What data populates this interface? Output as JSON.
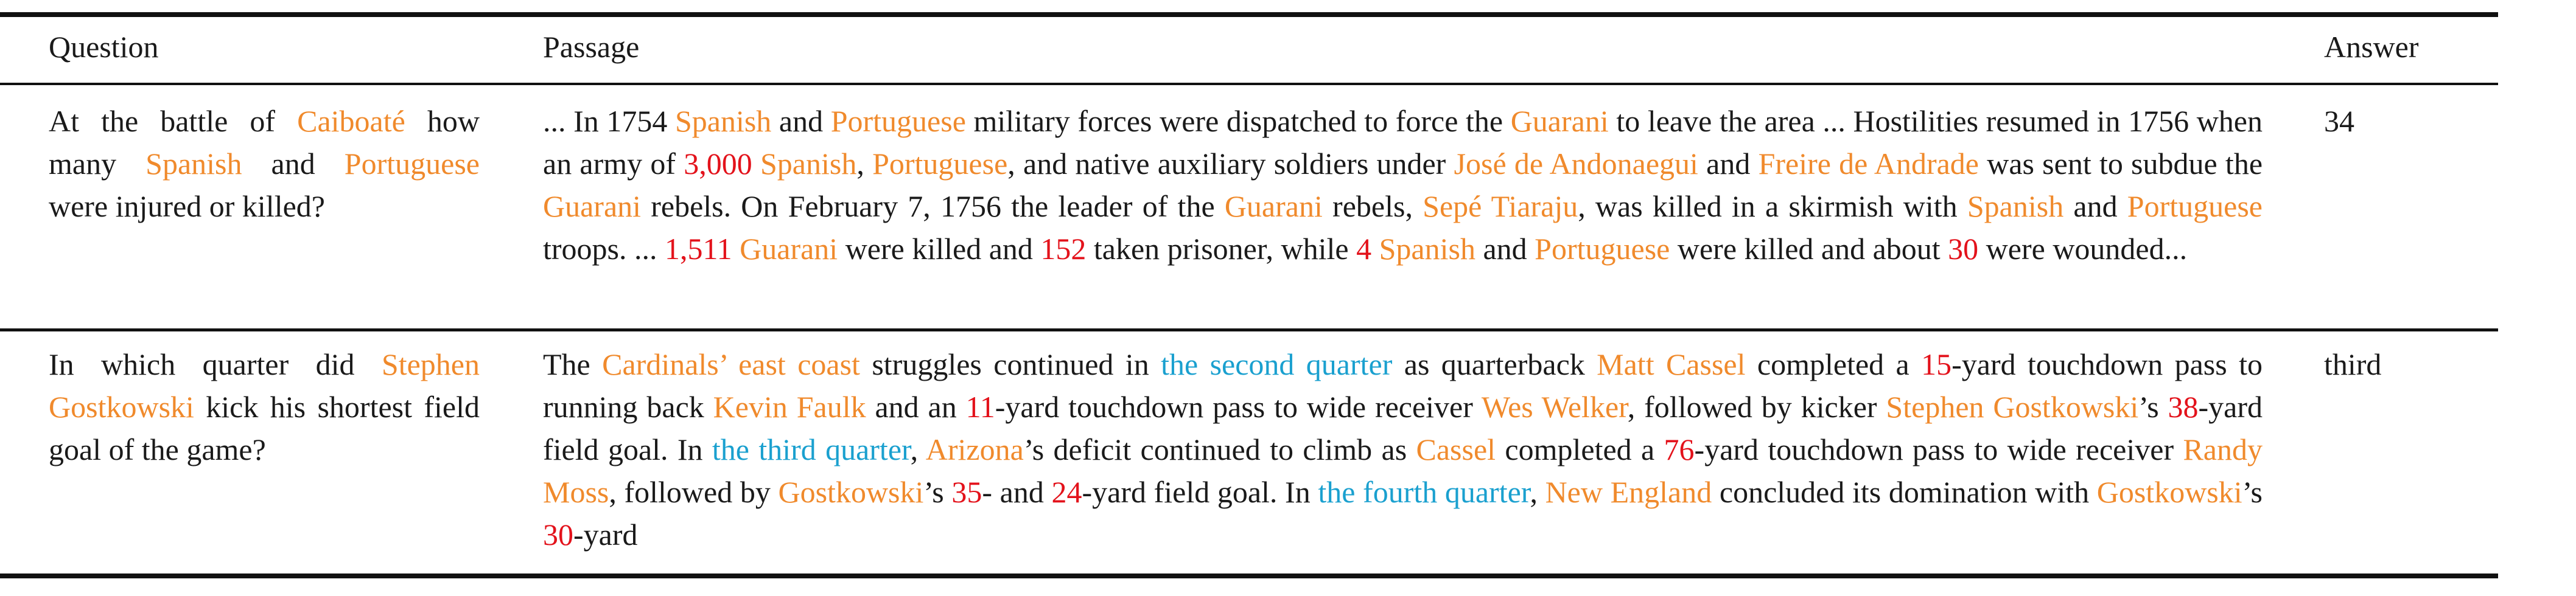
{
  "headers": {
    "question": "Question",
    "passage": "Passage",
    "answer": "Answer"
  },
  "highlight_colors": {
    "entity": "#f08a2c",
    "number": "#e3121b",
    "quarter": "#1aa0cf"
  },
  "rows": [
    {
      "question": [
        [
          "At the battle of ",
          ""
        ],
        [
          "Caiboaté",
          "o"
        ],
        [
          " how many ",
          ""
        ],
        [
          "Spanish",
          "o"
        ],
        [
          " and ",
          ""
        ],
        [
          "Portuguese",
          "o"
        ],
        [
          " were injured or killed?",
          ""
        ]
      ],
      "passage": [
        [
          "... In 1754 ",
          ""
        ],
        [
          "Spanish",
          "o"
        ],
        [
          " and ",
          ""
        ],
        [
          "Portuguese",
          "o"
        ],
        [
          " military forces were dispatched to force the ",
          ""
        ],
        [
          "Guarani",
          "o"
        ],
        [
          " to leave the area ... Hostilities resumed in 1756 when an army of ",
          ""
        ],
        [
          "3,000",
          "n"
        ],
        [
          " ",
          ""
        ],
        [
          "Spanish",
          "o"
        ],
        [
          ", ",
          ""
        ],
        [
          "Portuguese",
          "o"
        ],
        [
          ", and native auxiliary soldiers under ",
          ""
        ],
        [
          "José de Andonaegui",
          "o"
        ],
        [
          " and ",
          ""
        ],
        [
          "Freire de Andrade",
          "o"
        ],
        [
          " was sent to subdue the ",
          ""
        ],
        [
          "Guarani",
          "o"
        ],
        [
          " rebels. On February 7, 1756 the leader of the ",
          ""
        ],
        [
          "Guarani",
          "o"
        ],
        [
          " rebels, ",
          ""
        ],
        [
          "Sepé Tiaraju",
          "o"
        ],
        [
          ", was killed in a skirmish with ",
          ""
        ],
        [
          "Spanish",
          "o"
        ],
        [
          " and ",
          ""
        ],
        [
          "Portuguese",
          "o"
        ],
        [
          " troops. ... ",
          ""
        ],
        [
          "1,511",
          "n"
        ],
        [
          " ",
          ""
        ],
        [
          "Guarani",
          "o"
        ],
        [
          " were killed and ",
          ""
        ],
        [
          "152",
          "n"
        ],
        [
          " taken prisoner, while ",
          ""
        ],
        [
          "4",
          "n"
        ],
        [
          " ",
          ""
        ],
        [
          "Spanish",
          "o"
        ],
        [
          " and ",
          ""
        ],
        [
          "Portuguese",
          "o"
        ],
        [
          " were killed and about ",
          ""
        ],
        [
          "30",
          "n"
        ],
        [
          " were wounded...",
          ""
        ]
      ],
      "answer": "34"
    },
    {
      "question": [
        [
          "In which quarter did ",
          ""
        ],
        [
          "Stephen Gostkowski",
          "o"
        ],
        [
          " kick his shortest field goal of the game?",
          ""
        ]
      ],
      "passage": [
        [
          "The ",
          ""
        ],
        [
          "Cardinals’ east coast",
          "o"
        ],
        [
          " struggles continued in ",
          ""
        ],
        [
          "the second quarter",
          "t"
        ],
        [
          " as quarterback ",
          ""
        ],
        [
          "Matt Cassel",
          "o"
        ],
        [
          " completed a ",
          ""
        ],
        [
          "15",
          "n"
        ],
        [
          "-yard touchdown pass to running back ",
          ""
        ],
        [
          "Kevin Faulk",
          "o"
        ],
        [
          " and an ",
          ""
        ],
        [
          "11",
          "n"
        ],
        [
          "-yard touchdown pass to wide receiver ",
          ""
        ],
        [
          "Wes Welker",
          "o"
        ],
        [
          ", followed by kicker ",
          ""
        ],
        [
          "Stephen Gostkowski",
          "o"
        ],
        [
          "’s ",
          ""
        ],
        [
          "38",
          "n"
        ],
        [
          "-yard field goal. In ",
          ""
        ],
        [
          "the third quarter",
          "t"
        ],
        [
          ", ",
          ""
        ],
        [
          "Arizona",
          "o"
        ],
        [
          "’s deficit continued to climb as ",
          ""
        ],
        [
          "Cassel",
          "o"
        ],
        [
          " completed a ",
          ""
        ],
        [
          "76",
          "n"
        ],
        [
          "-yard touchdown pass to wide receiver ",
          ""
        ],
        [
          "Randy Moss",
          "o"
        ],
        [
          ", followed by ",
          ""
        ],
        [
          "Gostkowski",
          "o"
        ],
        [
          "’s ",
          ""
        ],
        [
          "35",
          "n"
        ],
        [
          "- and ",
          ""
        ],
        [
          "24",
          "n"
        ],
        [
          "-yard field goal. In ",
          ""
        ],
        [
          "the fourth quarter",
          "t"
        ],
        [
          ", ",
          ""
        ],
        [
          "New England",
          "o"
        ],
        [
          " concluded its domination with ",
          ""
        ],
        [
          "Gostkowski",
          "o"
        ],
        [
          "’s ",
          ""
        ],
        [
          "30",
          "n"
        ],
        [
          "-yard",
          ""
        ]
      ],
      "answer": "third"
    }
  ]
}
